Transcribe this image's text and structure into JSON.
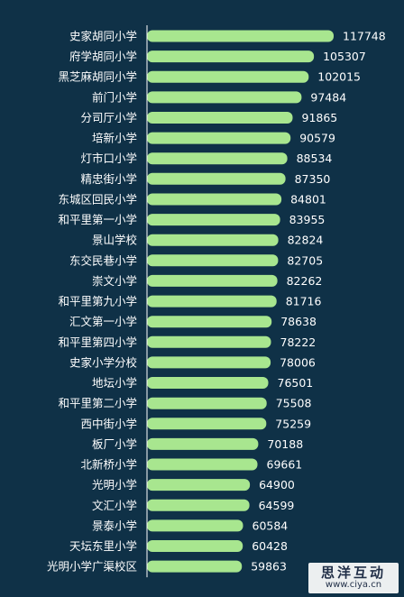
{
  "chart_data": {
    "type": "bar",
    "orientation": "horizontal",
    "categories": [
      "史家胡同小学",
      "府学胡同小学",
      "黑芝麻胡同小学",
      "前门小学",
      "分司厅小学",
      "培新小学",
      "灯市口小学",
      "精忠街小学",
      "东城区回民小学",
      "和平里第一小学",
      "景山学校",
      "东交民巷小学",
      "崇文小学",
      "和平里第九小学",
      "汇文第一小学",
      "和平里第四小学",
      "史家小学分校",
      "地坛小学",
      "和平里第二小学",
      "西中街小学",
      "板厂小学",
      "北新桥小学",
      "光明小学",
      "文汇小学",
      "景泰小学",
      "天坛东里小学",
      "光明小学广渠校区"
    ],
    "values": [
      117748,
      105307,
      102015,
      97484,
      91865,
      90579,
      88534,
      87350,
      84801,
      83955,
      82824,
      82705,
      82262,
      81716,
      78638,
      78222,
      78006,
      76501,
      75508,
      75259,
      70188,
      69661,
      64900,
      64599,
      60584,
      60428,
      59863
    ],
    "value_labels": [
      "117748",
      "105307",
      "102015",
      "97484",
      "91865",
      "90579",
      "88534",
      "87350",
      "84801",
      "83955",
      "82824",
      "82705",
      "82262",
      "81716",
      "78638",
      "78222",
      "78006",
      "76501",
      "75508",
      "75259",
      "70188",
      "69661",
      "64900",
      "64599",
      "60584",
      "60428",
      "59863"
    ],
    "bar_color": "#a8e68f",
    "axis_color": "#ffffff",
    "background": "#0f3147",
    "grid": false,
    "legend": "none"
  },
  "watermark": {
    "main": "思洋互动",
    "url": "www.ciya.cn"
  }
}
